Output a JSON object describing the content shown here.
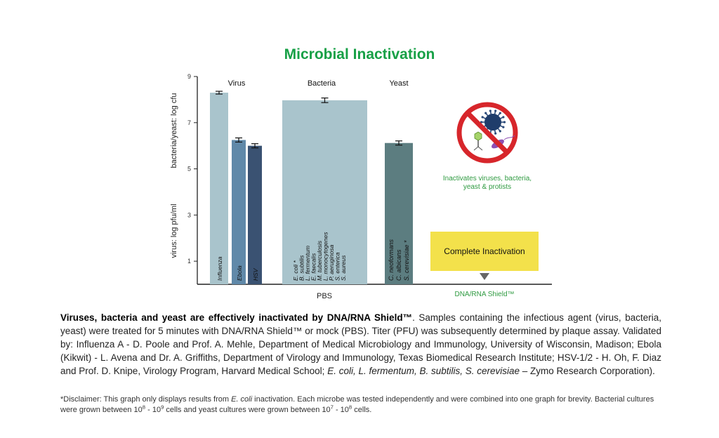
{
  "chart_data": {
    "type": "bar",
    "title": "Microbial Inactivation",
    "ylabel_left": "virus: log pfu/ml",
    "ylabel_right": "bacteria/yeast: log cfu",
    "yticks": [
      1,
      3,
      5,
      7,
      9
    ],
    "ylim": [
      0,
      9
    ],
    "groups": [
      {
        "label": "Virus",
        "bars": [
          {
            "label": "Influenza",
            "value": 8.3,
            "error": 0.03,
            "color": "#a9c4cc"
          },
          {
            "label": "Ebola",
            "value": 6.25,
            "error": 0.06,
            "color": "#6089a9"
          },
          {
            "label": "HSV",
            "value": 6.0,
            "error": 0.06,
            "color": "#3a5272"
          }
        ]
      },
      {
        "label": "Bacteria",
        "bars": [
          {
            "label": "E. coli * | B. subtilis | L. fermentum | E. faecalis | M. tuberculosis | L. monocytogenes | P. aeruginosa | S. enterica | S. aureus",
            "value": 7.97,
            "error": 0.07,
            "color": "#a9c4cc"
          }
        ]
      },
      {
        "label": "Yeast",
        "bars": [
          {
            "label": "C. neoformans | C. albicans | S. cerevisiae *",
            "value": 6.12,
            "error": 0.06,
            "color": "#5c7d80"
          }
        ]
      }
    ],
    "bacteria_species": [
      "E. coli *",
      "B. subtilis",
      "L. fermentum",
      "E. faecalis",
      "M. tuberculosis",
      "L. monocytogenes",
      "P. aeruginosa",
      "S. enterica",
      "S. aureus"
    ],
    "yeast_species": [
      "C. neoformans",
      "C. albicans",
      "S. cerevisiae *"
    ],
    "x_groups": [
      "PBS",
      "DNA/RNA Shield™"
    ],
    "shield_result": "Complete Inactivation",
    "inset_text_line1": "Inactivates viruses, bacteria,",
    "inset_text_line2": "yeast & protists",
    "colors": {
      "title": "#17a046",
      "highlight": "#f3e14b",
      "prohibit": "#d7262b",
      "green_text": "#2e9a40"
    }
  },
  "caption": {
    "bold": "Viruses, bacteria and yeast are effectively inactivated by DNA/RNA Shield™",
    "p1": ". Samples containing the infectious agent (virus, bacteria, yeast) were treated for 5 minutes with DNA/RNA Shield™ or mock (PBS). Titer (PFU) was subsequently determined by plaque assay. Validated by: Influenza A - D. Poole and Prof. A. Mehle, Department of Medical Microbiology and Immunology, University of Wisconsin, Madison; Ebola (Kikwit) -  L. Avena and Dr. A. Griffiths, Department of Virology and Immunology, Texas Biomedical Research Institute; HSV-1/2 - H. Oh, F. Diaz and Prof. D. Knipe, Virology Program, Harvard Medical School;  ",
    "italic": "E. coli, L. fermentum, B. subtilis, S. cerevisiae",
    "p2": " – Zymo Research Corporation)."
  },
  "disclaimer": {
    "a": "*Disclaimer: This graph only displays results from ",
    "a_italic": "E. coli",
    "b": " inactivation. Each microbe was tested independently and were combined into one graph for brevity. Bacterial cultures were grown between 10",
    "e1": "8",
    "c": " - 10",
    "e2": "9",
    "d": " cells and yeast cultures were grown between 10",
    "e3": "7",
    "f": " - 10",
    "e4": "8",
    "g": " cells."
  }
}
